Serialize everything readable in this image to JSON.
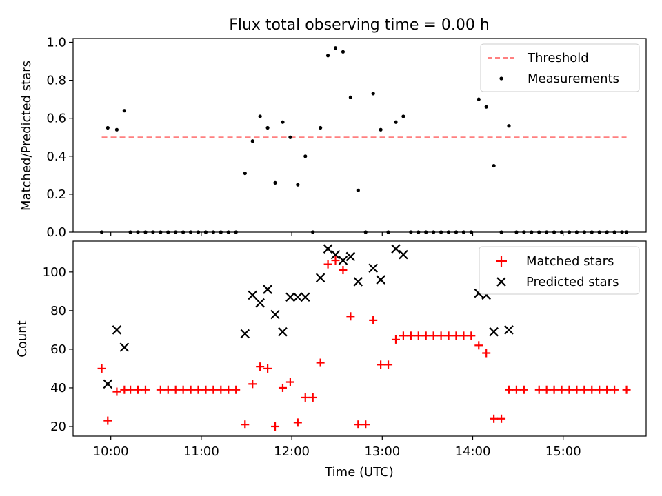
{
  "title": "Flux total observing time = 0.00 h",
  "chart_data": [
    {
      "type": "scatter",
      "ylabel": "Matched/Predicted stars",
      "xlabel": "",
      "xlim": [
        "09:35",
        "15:55"
      ],
      "ylim": [
        0,
        1.02
      ],
      "yticks": [
        0.0,
        0.2,
        0.4,
        0.6,
        0.8,
        1.0
      ],
      "ytick_labels": [
        "0.0",
        "0.2",
        "0.4",
        "0.6",
        "0.8",
        "1.0"
      ],
      "legend": {
        "placement": "top-right",
        "entries": [
          "Threshold",
          "Measurements"
        ]
      },
      "threshold": {
        "name": "Threshold",
        "value": 0.5,
        "x_start": "09:54",
        "x_end": "15:42",
        "color": "#ff8080"
      },
      "series": [
        {
          "name": "Measurements",
          "color": "#000000",
          "points": [
            [
              "09:54",
              0.0
            ],
            [
              "09:58",
              0.55
            ],
            [
              "10:04",
              0.54
            ],
            [
              "10:09",
              0.64
            ],
            [
              "10:13",
              0.0
            ],
            [
              "10:18",
              0.0
            ],
            [
              "10:23",
              0.0
            ],
            [
              "10:28",
              0.0
            ],
            [
              "10:33",
              0.0
            ],
            [
              "10:38",
              0.0
            ],
            [
              "10:43",
              0.0
            ],
            [
              "10:48",
              0.0
            ],
            [
              "10:53",
              0.0
            ],
            [
              "10:58",
              0.0
            ],
            [
              "11:03",
              0.0
            ],
            [
              "11:08",
              0.0
            ],
            [
              "11:13",
              0.0
            ],
            [
              "11:18",
              0.0
            ],
            [
              "11:23",
              0.0
            ],
            [
              "11:29",
              0.31
            ],
            [
              "11:34",
              0.48
            ],
            [
              "11:39",
              0.61
            ],
            [
              "11:44",
              0.55
            ],
            [
              "11:49",
              0.26
            ],
            [
              "11:54",
              0.58
            ],
            [
              "11:59",
              0.5
            ],
            [
              "12:04",
              0.25
            ],
            [
              "12:09",
              0.4
            ],
            [
              "12:14",
              0.0
            ],
            [
              "12:19",
              0.55
            ],
            [
              "12:24",
              0.93
            ],
            [
              "12:29",
              0.97
            ],
            [
              "12:34",
              0.95
            ],
            [
              "12:39",
              0.71
            ],
            [
              "12:44",
              0.22
            ],
            [
              "12:49",
              0.0
            ],
            [
              "12:54",
              0.73
            ],
            [
              "12:59",
              0.54
            ],
            [
              "13:04",
              0.0
            ],
            [
              "13:09",
              0.58
            ],
            [
              "13:14",
              0.61
            ],
            [
              "13:19",
              0.0
            ],
            [
              "13:24",
              0.0
            ],
            [
              "13:29",
              0.0
            ],
            [
              "13:34",
              0.0
            ],
            [
              "13:39",
              0.0
            ],
            [
              "13:44",
              0.0
            ],
            [
              "13:49",
              0.0
            ],
            [
              "13:54",
              0.0
            ],
            [
              "13:59",
              0.0
            ],
            [
              "14:04",
              0.7
            ],
            [
              "14:09",
              0.66
            ],
            [
              "14:14",
              0.35
            ],
            [
              "14:19",
              0.0
            ],
            [
              "14:24",
              0.56
            ],
            [
              "14:29",
              0.0
            ],
            [
              "14:34",
              0.0
            ],
            [
              "14:39",
              0.0
            ],
            [
              "14:44",
              0.0
            ],
            [
              "14:49",
              0.0
            ],
            [
              "14:54",
              0.0
            ],
            [
              "14:59",
              0.0
            ],
            [
              "15:04",
              0.0
            ],
            [
              "15:09",
              0.0
            ],
            [
              "15:14",
              0.0
            ],
            [
              "15:19",
              0.0
            ],
            [
              "15:24",
              0.0
            ],
            [
              "15:29",
              0.0
            ],
            [
              "15:34",
              0.0
            ],
            [
              "15:39",
              0.0
            ],
            [
              "15:42",
              0.0
            ]
          ]
        }
      ]
    },
    {
      "type": "scatter",
      "ylabel": "Count",
      "xlabel": "Time (UTC)",
      "xlim": [
        "09:35",
        "15:55"
      ],
      "ylim": [
        15,
        116
      ],
      "yticks": [
        20,
        40,
        60,
        80,
        100
      ],
      "ytick_labels": [
        "20",
        "40",
        "60",
        "80",
        "100"
      ],
      "xticks": [
        "10:00",
        "11:00",
        "12:00",
        "13:00",
        "14:00",
        "15:00"
      ],
      "xtick_labels": [
        "10:00",
        "11:00",
        "12:00",
        "13:00",
        "14:00",
        "15:00"
      ],
      "legend": {
        "placement": "top-right",
        "entries": [
          "Matched stars",
          "Predicted stars"
        ]
      },
      "series": [
        {
          "name": "Matched stars",
          "marker": "plus",
          "color": "#ff0000",
          "points": [
            [
              "09:54",
              50
            ],
            [
              "09:58",
              23
            ],
            [
              "10:04",
              38
            ],
            [
              "10:09",
              39
            ],
            [
              "10:13",
              39
            ],
            [
              "10:18",
              39
            ],
            [
              "10:23",
              39
            ],
            [
              "10:33",
              39
            ],
            [
              "10:38",
              39
            ],
            [
              "10:43",
              39
            ],
            [
              "10:48",
              39
            ],
            [
              "10:53",
              39
            ],
            [
              "10:58",
              39
            ],
            [
              "11:03",
              39
            ],
            [
              "11:08",
              39
            ],
            [
              "11:13",
              39
            ],
            [
              "11:18",
              39
            ],
            [
              "11:23",
              39
            ],
            [
              "11:29",
              21
            ],
            [
              "11:34",
              42
            ],
            [
              "11:39",
              51
            ],
            [
              "11:44",
              50
            ],
            [
              "11:49",
              20
            ],
            [
              "11:54",
              40
            ],
            [
              "11:59",
              43
            ],
            [
              "12:04",
              22
            ],
            [
              "12:09",
              35
            ],
            [
              "12:14",
              35
            ],
            [
              "12:19",
              53
            ],
            [
              "12:24",
              104
            ],
            [
              "12:29",
              106
            ],
            [
              "12:34",
              101
            ],
            [
              "12:39",
              77
            ],
            [
              "12:44",
              21
            ],
            [
              "12:49",
              21
            ],
            [
              "12:54",
              75
            ],
            [
              "12:59",
              52
            ],
            [
              "13:04",
              52
            ],
            [
              "13:09",
              65
            ],
            [
              "13:14",
              67
            ],
            [
              "13:19",
              67
            ],
            [
              "13:24",
              67
            ],
            [
              "13:29",
              67
            ],
            [
              "13:34",
              67
            ],
            [
              "13:39",
              67
            ],
            [
              "13:44",
              67
            ],
            [
              "13:49",
              67
            ],
            [
              "13:54",
              67
            ],
            [
              "13:59",
              67
            ],
            [
              "14:04",
              62
            ],
            [
              "14:09",
              58
            ],
            [
              "14:14",
              24
            ],
            [
              "14:19",
              24
            ],
            [
              "14:24",
              39
            ],
            [
              "14:29",
              39
            ],
            [
              "14:34",
              39
            ],
            [
              "14:44",
              39
            ],
            [
              "14:49",
              39
            ],
            [
              "14:54",
              39
            ],
            [
              "14:59",
              39
            ],
            [
              "15:04",
              39
            ],
            [
              "15:09",
              39
            ],
            [
              "15:14",
              39
            ],
            [
              "15:19",
              39
            ],
            [
              "15:24",
              39
            ],
            [
              "15:29",
              39
            ],
            [
              "15:34",
              39
            ],
            [
              "15:42",
              39
            ]
          ]
        },
        {
          "name": "Predicted stars",
          "marker": "x",
          "color": "#000000",
          "points": [
            [
              "09:58",
              42
            ],
            [
              "10:04",
              70
            ],
            [
              "10:09",
              61
            ],
            [
              "11:29",
              68
            ],
            [
              "11:34",
              88
            ],
            [
              "11:39",
              84
            ],
            [
              "11:44",
              91
            ],
            [
              "11:49",
              78
            ],
            [
              "11:54",
              69
            ],
            [
              "11:59",
              87
            ],
            [
              "12:04",
              87
            ],
            [
              "12:09",
              87
            ],
            [
              "12:19",
              97
            ],
            [
              "12:24",
              112
            ],
            [
              "12:29",
              109
            ],
            [
              "12:34",
              106
            ],
            [
              "12:39",
              108
            ],
            [
              "12:44",
              95
            ],
            [
              "12:54",
              102
            ],
            [
              "12:59",
              96
            ],
            [
              "13:09",
              112
            ],
            [
              "13:14",
              109
            ],
            [
              "14:04",
              89
            ],
            [
              "14:09",
              88
            ],
            [
              "14:14",
              69
            ],
            [
              "14:24",
              70
            ]
          ]
        }
      ]
    }
  ]
}
